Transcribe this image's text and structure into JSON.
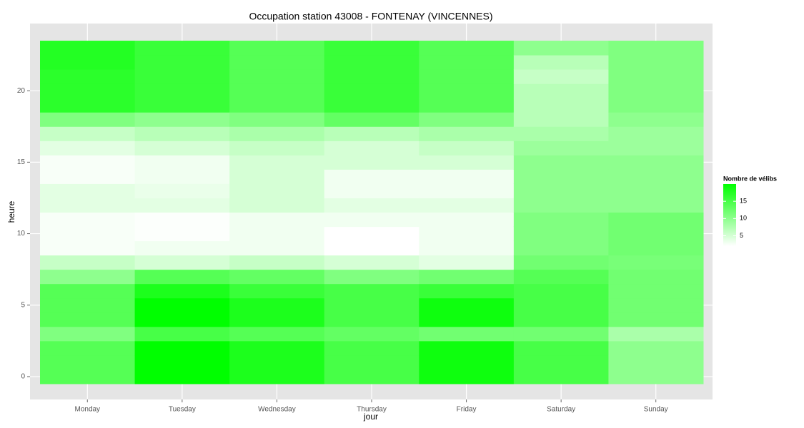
{
  "chart_data": {
    "type": "heatmap",
    "title": "Occupation station 43008 - FONTENAY (VINCENNES)",
    "x_label": "jour",
    "y_label": "heure",
    "categories": [
      "Monday",
      "Tuesday",
      "Wednesday",
      "Thursday",
      "Friday",
      "Saturday",
      "Sunday"
    ],
    "y": [
      0,
      1,
      2,
      3,
      4,
      5,
      6,
      7,
      8,
      9,
      10,
      11,
      12,
      13,
      14,
      15,
      16,
      17,
      18,
      19,
      20,
      21,
      22,
      23
    ],
    "values": [
      [
        14,
        14,
        14,
        11,
        14,
        14,
        14,
        10,
        6,
        2.5,
        2.5,
        2.5,
        4,
        4,
        2.5,
        2.5,
        4,
        6,
        11,
        17,
        17,
        17,
        17.5,
        17.5
      ],
      [
        20,
        20,
        20,
        15,
        20,
        20,
        18,
        14,
        5,
        3,
        2.2,
        2.2,
        4,
        3.5,
        3,
        3,
        5,
        7,
        10,
        16,
        16,
        16,
        16,
        16
      ],
      [
        18,
        18,
        18,
        14,
        18,
        18,
        16,
        13,
        6,
        3,
        3,
        3,
        5,
        5,
        5,
        5,
        6,
        8,
        11,
        14,
        14,
        14,
        14,
        14
      ],
      [
        15,
        15,
        15,
        13,
        15,
        15,
        15,
        11,
        5,
        2,
        2,
        3,
        4,
        3,
        3,
        5,
        5,
        7,
        13,
        16,
        16,
        16,
        16,
        16
      ],
      [
        19,
        19,
        19,
        12,
        19,
        19,
        16,
        12,
        4,
        3,
        3,
        3,
        4,
        3,
        3,
        5,
        6,
        8,
        11,
        14,
        14,
        14,
        14,
        14
      ],
      [
        15,
        15,
        15,
        12,
        15,
        15,
        15,
        14,
        12,
        11,
        11,
        11,
        10,
        10,
        10,
        10,
        9,
        8,
        7,
        7,
        7,
        6,
        7,
        10
      ],
      [
        10,
        10,
        10,
        8,
        12,
        12,
        12,
        12,
        11.5,
        12,
        12,
        12,
        10,
        10,
        10,
        10,
        9,
        9,
        10,
        11,
        11,
        11,
        11,
        11
      ]
    ],
    "ylim": [
      -1.6,
      24.7
    ],
    "yticks": [
      0,
      5,
      10,
      15,
      20
    ],
    "grid": true,
    "colorscale": [
      "#ffffff",
      "#00ff00"
    ],
    "zlim": [
      2,
      20
    ],
    "legend_title": "Nombre de vélibs",
    "legend_ticks": [
      5,
      10,
      15
    ]
  }
}
